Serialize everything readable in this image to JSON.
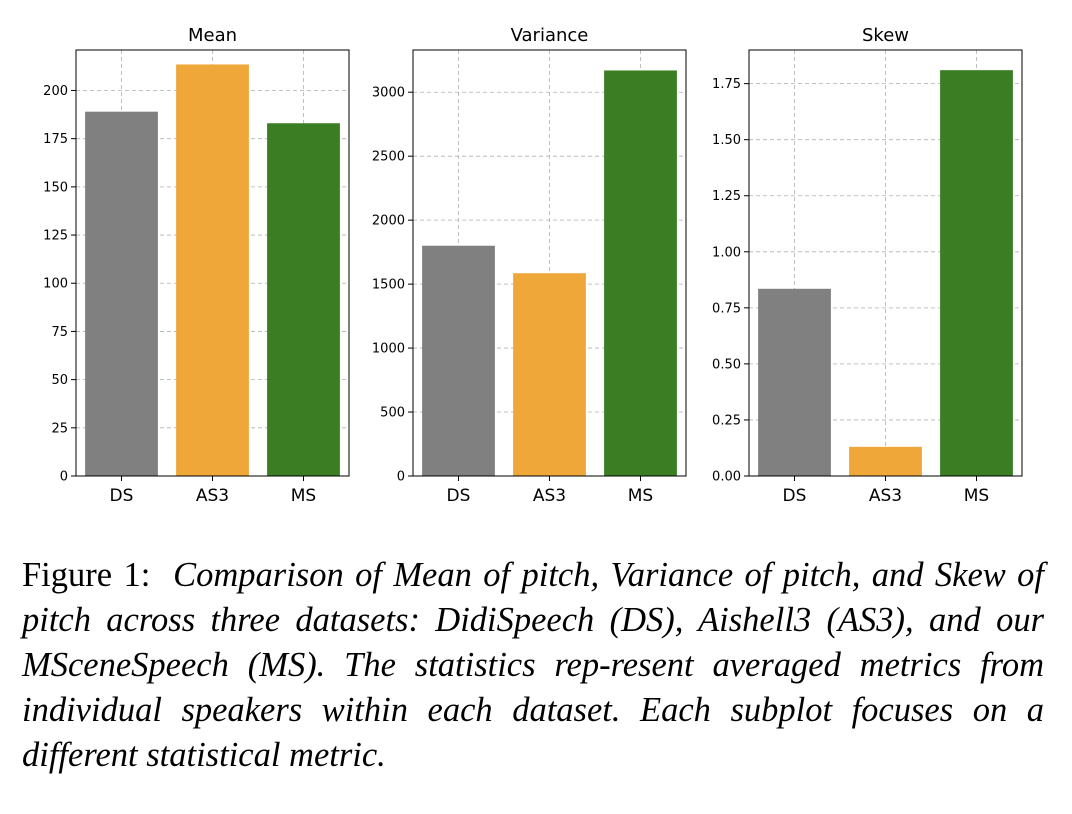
{
  "colors": {
    "DS": "#808080",
    "AS3": "#f0a73a",
    "MS": "#3a7d22",
    "grid": "#b0b0b0",
    "axis": "#000000"
  },
  "chart_data": [
    {
      "type": "bar",
      "title": "Mean",
      "categories": [
        "DS",
        "AS3",
        "MS"
      ],
      "values": [
        189,
        213.5,
        183
      ],
      "ylim": [
        0,
        221
      ],
      "yticks": [
        0,
        25,
        50,
        75,
        100,
        125,
        150,
        175,
        200
      ],
      "ytick_labels": [
        "0",
        "25",
        "50",
        "75",
        "100",
        "125",
        "150",
        "175",
        "200"
      ],
      "xlabel": "",
      "ylabel": "",
      "grid": true,
      "bar_colors": [
        "#808080",
        "#f0a73a",
        "#3a7d22"
      ]
    },
    {
      "type": "bar",
      "title": "Variance",
      "categories": [
        "DS",
        "AS3",
        "MS"
      ],
      "values": [
        1800,
        1585,
        3170
      ],
      "ylim": [
        0,
        3330
      ],
      "yticks": [
        0,
        500,
        1000,
        1500,
        2000,
        2500,
        3000
      ],
      "ytick_labels": [
        "0",
        "500",
        "1000",
        "1500",
        "2000",
        "2500",
        "3000"
      ],
      "xlabel": "",
      "ylabel": "",
      "grid": true,
      "bar_colors": [
        "#808080",
        "#f0a73a",
        "#3a7d22"
      ]
    },
    {
      "type": "bar",
      "title": "Skew",
      "categories": [
        "DS",
        "AS3",
        "MS"
      ],
      "values": [
        0.835,
        0.13,
        1.81
      ],
      "ylim": [
        0,
        1.9
      ],
      "yticks": [
        0,
        0.25,
        0.5,
        0.75,
        1.0,
        1.25,
        1.5,
        1.75
      ],
      "ytick_labels": [
        "0.00",
        "0.25",
        "0.50",
        "0.75",
        "1.00",
        "1.25",
        "1.50",
        "1.75"
      ],
      "xlabel": "",
      "ylabel": "",
      "grid": true,
      "bar_colors": [
        "#808080",
        "#f0a73a",
        "#3a7d22"
      ]
    }
  ],
  "caption": {
    "label": "Figure 1:",
    "text": "Comparison of Mean of pitch, Variance of pitch, and Skew of pitch across three datasets: DidiSpeech (DS), Aishell3 (AS3), and our MSceneSpeech (MS). The statistics rep-resent averaged metrics from individual speakers within each dataset. Each subplot focuses on a different statistical metric."
  }
}
